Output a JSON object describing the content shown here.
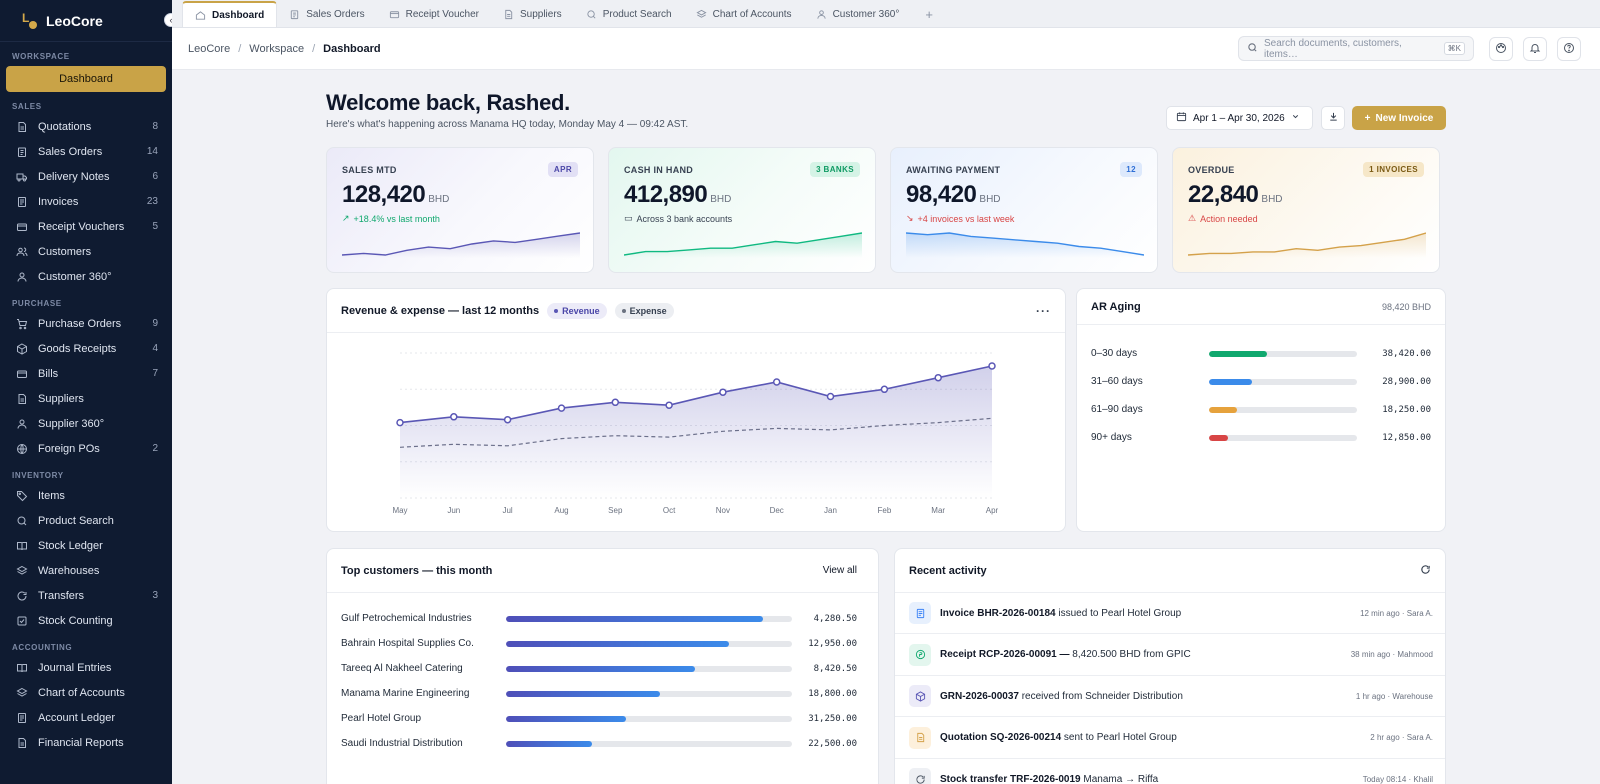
{
  "app": {
    "name": "LeoCore"
  },
  "sidebar": {
    "active": "Dashboard",
    "sections": [
      {
        "title": "WORKSPACE",
        "items": []
      },
      {
        "title": "SALES",
        "items": [
          {
            "label": "Quotations",
            "count": "8",
            "icon": "document-icon"
          },
          {
            "label": "Sales Orders",
            "count": "14",
            "icon": "clipboard-icon"
          },
          {
            "label": "Delivery Notes",
            "count": "6",
            "icon": "truck-icon"
          },
          {
            "label": "Invoices",
            "count": "23",
            "icon": "invoice-icon"
          },
          {
            "label": "Receipt Vouchers",
            "count": "5",
            "icon": "wallet-icon"
          },
          {
            "label": "Customers",
            "count": "",
            "icon": "users-icon"
          },
          {
            "label": "Customer 360°",
            "count": "",
            "icon": "user-icon"
          }
        ]
      },
      {
        "title": "PURCHASE",
        "items": [
          {
            "label": "Purchase Orders",
            "count": "9",
            "icon": "cart-icon"
          },
          {
            "label": "Goods Receipts",
            "count": "4",
            "icon": "box-icon"
          },
          {
            "label": "Bills",
            "count": "7",
            "icon": "wallet-icon"
          },
          {
            "label": "Suppliers",
            "count": "",
            "icon": "document-icon"
          },
          {
            "label": "Supplier 360°",
            "count": "",
            "icon": "user-icon"
          },
          {
            "label": "Foreign POs",
            "count": "2",
            "icon": "globe-icon"
          }
        ]
      },
      {
        "title": "INVENTORY",
        "items": [
          {
            "label": "Items",
            "count": "",
            "icon": "tag-icon"
          },
          {
            "label": "Product Search",
            "count": "",
            "icon": "search-icon"
          },
          {
            "label": "Stock Ledger",
            "count": "",
            "icon": "book-icon"
          },
          {
            "label": "Warehouses",
            "count": "",
            "icon": "layers-icon"
          },
          {
            "label": "Transfers",
            "count": "3",
            "icon": "refresh-icon"
          },
          {
            "label": "Stock Counting",
            "count": "",
            "icon": "checkbox-icon"
          }
        ]
      },
      {
        "title": "ACCOUNTING",
        "items": [
          {
            "label": "Journal Entries",
            "count": "",
            "icon": "book-icon"
          },
          {
            "label": "Chart of Accounts",
            "count": "",
            "icon": "layers-icon"
          },
          {
            "label": "Account Ledger",
            "count": "",
            "icon": "invoice-icon"
          },
          {
            "label": "Financial Reports",
            "count": "",
            "icon": "document-icon"
          }
        ]
      }
    ]
  },
  "tabs": [
    {
      "label": "Dashboard",
      "icon": "home-icon",
      "active": true
    },
    {
      "label": "Sales Orders",
      "icon": "clipboard-icon"
    },
    {
      "label": "Receipt Voucher",
      "icon": "wallet-icon"
    },
    {
      "label": "Suppliers",
      "icon": "document-icon"
    },
    {
      "label": "Product Search",
      "icon": "search-icon"
    },
    {
      "label": "Chart of Accounts",
      "icon": "layers-icon"
    },
    {
      "label": "Customer 360°",
      "icon": "user-icon"
    }
  ],
  "tab_add": "+",
  "breadcrumb": [
    "LeoCore",
    "Workspace",
    "Dashboard"
  ],
  "breadcrumb_sep": "/",
  "search": {
    "placeholder": "Search documents, customers, items…",
    "shortcut": "⌘K"
  },
  "welcome": {
    "title": "Welcome back, Rashed.",
    "subtitle": "Here's what's happening across Manama HQ today, Monday May 4 — 09:42 AST."
  },
  "date_range": "Apr 1 – Apr 30, 2026",
  "new_invoice": "New Invoice",
  "kpis": [
    {
      "label": "SALES MTD",
      "badge": "APR",
      "value": "128,420",
      "unit": "BHD",
      "sub": "+18.4% vs last month",
      "accent": "#5a57b5",
      "spark": [
        4,
        5,
        4,
        7,
        9,
        8,
        11,
        13,
        12,
        14,
        16,
        18
      ]
    },
    {
      "label": "CASH IN HAND",
      "badge": "3 BANKS",
      "value": "412,890",
      "unit": "BHD",
      "sub": "Across 3 bank accounts",
      "accent": "#10b981",
      "spark": [
        4,
        6,
        6,
        7,
        8,
        8,
        10,
        12,
        11,
        13,
        15,
        17
      ]
    },
    {
      "label": "AWAITING PAYMENT",
      "badge": "12",
      "value": "98,420",
      "unit": "BHD",
      "sub": "+4 invoices vs last week",
      "accent": "#3b8bea",
      "spark": [
        18,
        17,
        18,
        16,
        15,
        14,
        13,
        12,
        10,
        9,
        7,
        5
      ]
    },
    {
      "label": "OVERDUE",
      "badge": "1 INVOICES",
      "value": "22,840",
      "unit": "BHD",
      "sub": "Action needed",
      "accent": "#d4a14a",
      "spark": [
        4,
        5,
        5,
        6,
        6,
        8,
        7,
        9,
        10,
        12,
        14,
        18
      ]
    }
  ],
  "revenue_chart": {
    "title": "Revenue & expense — last 12 months",
    "legend": [
      "Revenue",
      "Expense"
    ],
    "more": "···"
  },
  "chart_data": {
    "type": "area",
    "title": "Revenue & expense — last 12 months",
    "categories": [
      "May",
      "Jun",
      "Jul",
      "Aug",
      "Sep",
      "Oct",
      "Nov",
      "Dec",
      "Jan",
      "Feb",
      "Mar",
      "Apr"
    ],
    "series": [
      {
        "name": "Revenue",
        "values": [
          52,
          56,
          54,
          62,
          66,
          64,
          73,
          80,
          70,
          75,
          83,
          91
        ]
      },
      {
        "name": "Expense",
        "values": [
          35,
          37,
          36,
          41,
          43,
          42,
          46,
          48,
          47,
          50,
          52,
          55
        ]
      }
    ],
    "ylim": [
      0,
      100
    ],
    "grid": true,
    "legend": "top-left"
  },
  "ar_aging": {
    "title": "AR Aging",
    "total": "98,420 BHD",
    "rows": [
      {
        "label": "0–30 days",
        "value": "38,420.00",
        "pct": 0.39,
        "color": "#10a86e"
      },
      {
        "label": "31–60 days",
        "value": "28,900.00",
        "pct": 0.29,
        "color": "#3b8bea"
      },
      {
        "label": "61–90 days",
        "value": "18,250.00",
        "pct": 0.19,
        "color": "#e6a23c"
      },
      {
        "label": "90+ days",
        "value": "12,850.00",
        "pct": 0.13,
        "color": "#d84545"
      }
    ]
  },
  "top_customers": {
    "title": "Top customers — this month",
    "view_all": "View all",
    "rows": [
      {
        "name": "Gulf Petrochemical Industries",
        "value": "4,280.50",
        "pct": 0.9
      },
      {
        "name": "Bahrain Hospital Supplies Co.",
        "value": "12,950.00",
        "pct": 0.78
      },
      {
        "name": "Tareeq Al Nakheel Catering",
        "value": "8,420.50",
        "pct": 0.66
      },
      {
        "name": "Manama Marine Engineering",
        "value": "18,800.00",
        "pct": 0.54
      },
      {
        "name": "Pearl Hotel Group",
        "value": "31,250.00",
        "pct": 0.42
      },
      {
        "name": "Saudi Industrial Distribution",
        "value": "22,500.00",
        "pct": 0.3
      }
    ]
  },
  "recent_activity": {
    "title": "Recent activity",
    "rows": [
      {
        "strong": "Invoice BHR-2026-00184",
        "rest": " issued to Pearl Hotel Group",
        "meta": "12 min ago · Sara A.",
        "icon": "invoice-icon",
        "bg": "#e7f0fd",
        "fg": "#3b82f6"
      },
      {
        "strong": "Receipt RCP-2026-00091 —",
        "rest": " 8,420.500 BHD from GPIC",
        "meta": "38 min ago · Mahmood",
        "icon": "receipt-icon",
        "bg": "#e3f6ee",
        "fg": "#10a86e"
      },
      {
        "strong": "GRN-2026-00037",
        "rest": " received from Schneider Distribution",
        "meta": "1 hr ago · Warehouse",
        "icon": "box-icon",
        "bg": "#ecebf8",
        "fg": "#5a57b5"
      },
      {
        "strong": "Quotation SQ-2026-00214",
        "rest": " sent to Pearl Hotel Group",
        "meta": "2 hr ago · Sara A.",
        "icon": "document-icon",
        "bg": "#fdf0dc",
        "fg": "#d4a14a"
      },
      {
        "strong": "Stock transfer TRF-2026-0019",
        "rest": " Manama → Riffa",
        "meta": "Today 08:14 · Khalil",
        "icon": "refresh-icon",
        "bg": "#eef0f4",
        "fg": "#4b5563"
      }
    ]
  }
}
